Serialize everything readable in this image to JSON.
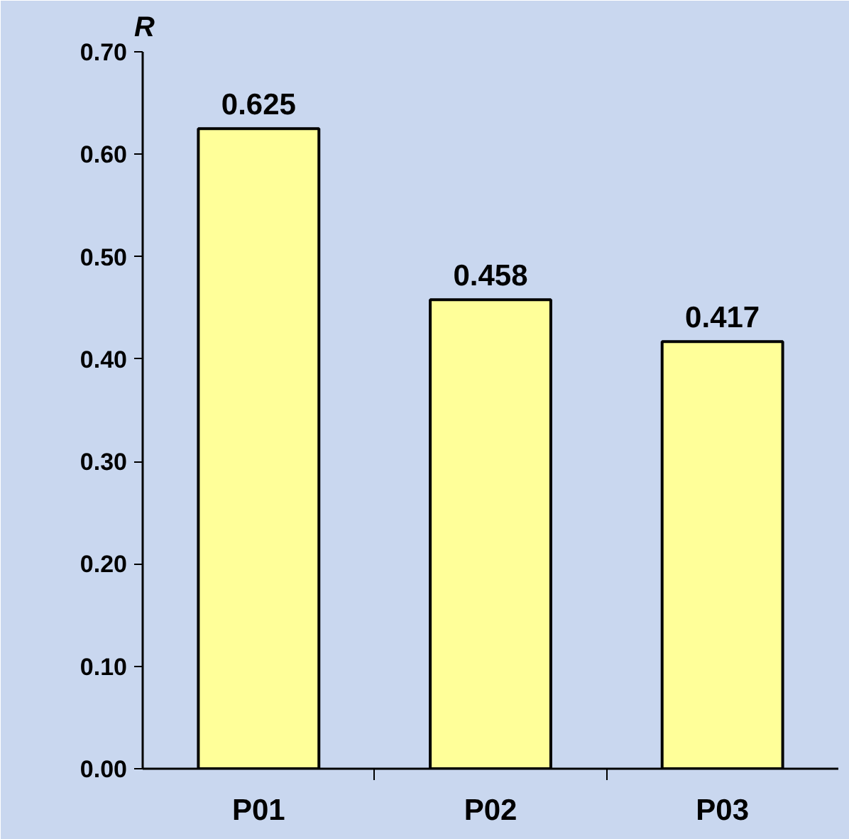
{
  "chart_data": {
    "type": "bar",
    "ylabel": "R",
    "categories": [
      "P01",
      "P02",
      "P03"
    ],
    "values": [
      0.625,
      0.458,
      0.417
    ],
    "color": "#ffff99",
    "ylim": [
      0,
      0.7
    ],
    "yticks": [
      {
        "value": 0,
        "label": "0.00"
      },
      {
        "value": 0.1,
        "label": "0.10"
      },
      {
        "value": 0.2,
        "label": "0.20"
      },
      {
        "value": 0.3,
        "label": "0.30"
      },
      {
        "value": 0.4,
        "label": "0.40"
      },
      {
        "value": 0.5,
        "label": "0.50"
      },
      {
        "value": 0.6,
        "label": "0.60"
      },
      {
        "value": 0.7,
        "label": "0.70"
      }
    ],
    "data_labels": true,
    "grid": false
  }
}
